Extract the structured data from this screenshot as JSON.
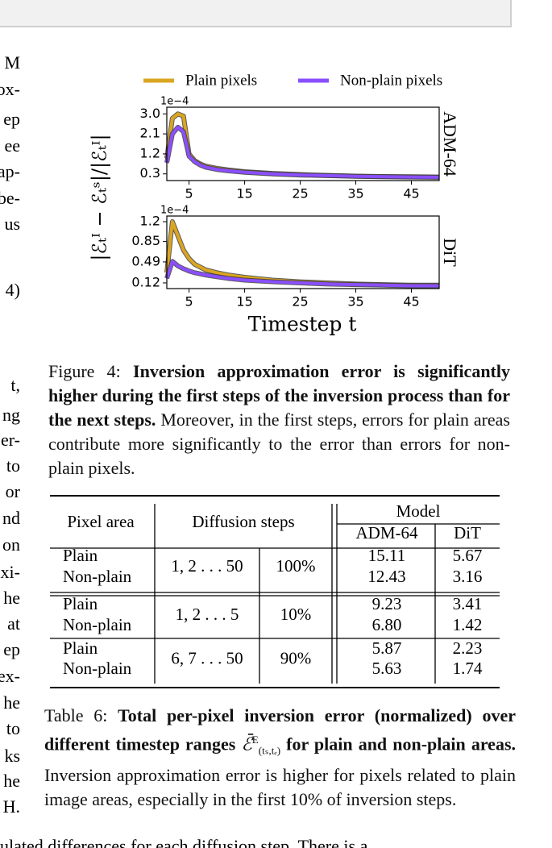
{
  "chart_data": [
    {
      "type": "line",
      "title": "ADM-64",
      "offset_label": "1e−4",
      "x": [
        1,
        2,
        3,
        4,
        5,
        6,
        7,
        8,
        10,
        12,
        15,
        20,
        25,
        30,
        35,
        40,
        45,
        50
      ],
      "series": [
        {
          "name": "Plain pixels",
          "color": "#daa520",
          "values": [
            1.0,
            2.8,
            3.0,
            2.9,
            1.2,
            0.9,
            0.75,
            0.65,
            0.55,
            0.48,
            0.4,
            0.32,
            0.27,
            0.23,
            0.2,
            0.18,
            0.17,
            0.16
          ]
        },
        {
          "name": "Non-plain pixels",
          "color": "#8a4fff",
          "values": [
            0.8,
            2.1,
            2.4,
            2.2,
            1.1,
            0.85,
            0.7,
            0.6,
            0.5,
            0.44,
            0.37,
            0.3,
            0.25,
            0.22,
            0.19,
            0.17,
            0.16,
            0.15
          ]
        }
      ],
      "xlim": [
        1,
        50
      ],
      "xticks": [
        5,
        15,
        25,
        35,
        45
      ],
      "ylim": [
        0,
        3.3
      ],
      "yticks": [
        0.3,
        1.2,
        2.1,
        {
          "value": 3,
          "label": "3.0"
        }
      ]
    },
    {
      "type": "line",
      "title": "DiT",
      "offset_label": "1e−4",
      "x": [
        1,
        2,
        3,
        4,
        5,
        6,
        7,
        8,
        10,
        12,
        15,
        20,
        25,
        30,
        35,
        40,
        45,
        50
      ],
      "series": [
        {
          "name": "Plain pixels",
          "color": "#daa520",
          "values": [
            0.3,
            1.2,
            0.95,
            0.7,
            0.55,
            0.45,
            0.4,
            0.35,
            0.3,
            0.26,
            0.22,
            0.17,
            0.14,
            0.12,
            0.1,
            0.09,
            0.08,
            0.08
          ]
        },
        {
          "name": "Non-plain pixels",
          "color": "#8a4fff",
          "values": [
            0.2,
            0.5,
            0.42,
            0.37,
            0.33,
            0.3,
            0.28,
            0.26,
            0.23,
            0.2,
            0.17,
            0.14,
            0.12,
            0.1,
            0.09,
            0.08,
            0.07,
            0.07
          ]
        }
      ],
      "xlim": [
        1,
        50
      ],
      "xticks": [
        5,
        15,
        25,
        35,
        45
      ],
      "ylim": [
        0.02,
        1.3
      ],
      "yticks": [
        0.12,
        0.49,
        0.85,
        1.2
      ]
    }
  ],
  "figure": {
    "ylabel": "|ℰₜᴵ − ℰₜˢ|/|ℰₜᴵ|",
    "xlabel": "Timestep t",
    "caption": {
      "label": "Figure 4: ",
      "bold": "Inversion approximation error is significantly higher during the first steps of the inversion process than for the next steps.",
      "text": " Moreover, in the first steps, errors for plain areas contribute more significantly to the error than errors for non-plain pixels."
    }
  },
  "table": {
    "header": [
      "Pixel area",
      "Diffusion steps",
      "Model",
      "ADM-64",
      "DiT"
    ],
    "groups": [
      {
        "areas": [
          "Plain",
          "Non-plain"
        ],
        "steps": "1, 2 . . . 50",
        "percent": "100%",
        "adm": [
          "15.11",
          "12.43"
        ],
        "dit": [
          "5.67",
          "3.16"
        ]
      },
      {
        "areas": [
          "Plain",
          "Non-plain"
        ],
        "steps": "1, 2 . . . 5",
        "percent": "10%",
        "adm": [
          "9.23",
          "6.80"
        ],
        "dit": [
          "3.41",
          "1.42"
        ]
      },
      {
        "areas": [
          "Plain",
          "Non-plain"
        ],
        "steps": "6, 7 . . . 50",
        "percent": "90%",
        "adm": [
          "5.87",
          "5.63"
        ],
        "dit": [
          "2.23",
          "1.74"
        ]
      }
    ],
    "caption": {
      "label": "Table 6: ",
      "bold": "Total per-pixel inversion error (normalized) over different timestep ranges ",
      "symbol": "ℰ̄",
      "sup": "E",
      "sub": "(tₛ,tₑ)",
      "bold2": " for plain and non-plain areas.",
      "text": " Inversion approximation error is higher for pixels related to plain image areas, especially in the first 10% of inversion steps."
    }
  },
  "left_column": [
    "M",
    "ox-",
    "ep",
    "ee",
    "ap-",
    "be-",
    "us",
    "4)",
    "t,",
    "ng",
    "er-",
    "to",
    "or",
    "nd",
    "on",
    "xi-",
    "he",
    "at",
    "ep",
    "ex-",
    "he",
    "to",
    "ks",
    "he",
    "H."
  ],
  "bottom_line": "ulated differences for each diffusion step. There is a"
}
